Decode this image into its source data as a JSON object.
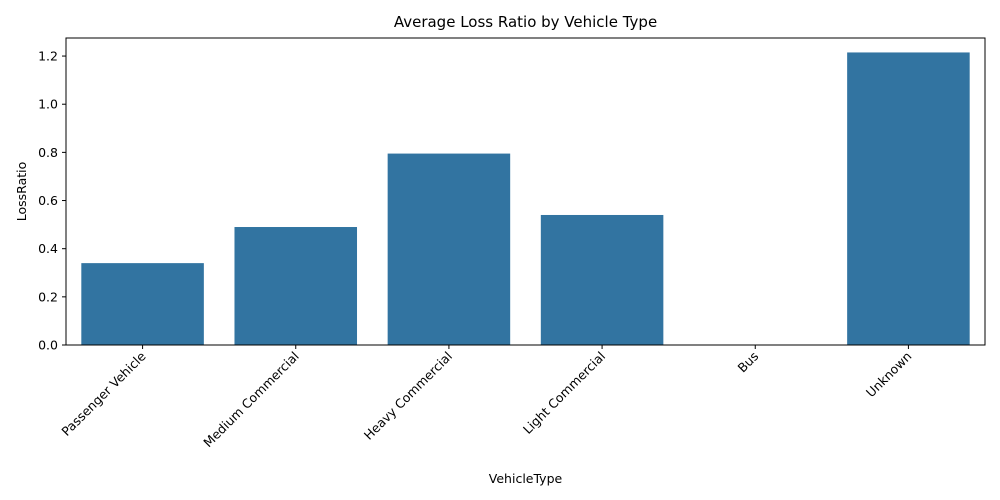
{
  "chart_data": {
    "type": "bar",
    "title": "Average Loss Ratio by Vehicle Type",
    "xlabel": "VehicleType",
    "ylabel": "LossRatio",
    "categories": [
      "Passenger Vehicle",
      "Medium Commercial",
      "Heavy Commercial",
      "Light Commercial",
      "Bus",
      "Unknown"
    ],
    "values": [
      0.34,
      0.49,
      0.795,
      0.54,
      0.0,
      1.215
    ],
    "ylim": [
      0,
      1.275
    ],
    "yticks": [
      "0.0",
      "0.2",
      "0.4",
      "0.6",
      "0.8",
      "1.0",
      "1.2"
    ],
    "grid": false,
    "bar_color": "#3274a1",
    "x_tick_rotation_deg": 45
  }
}
